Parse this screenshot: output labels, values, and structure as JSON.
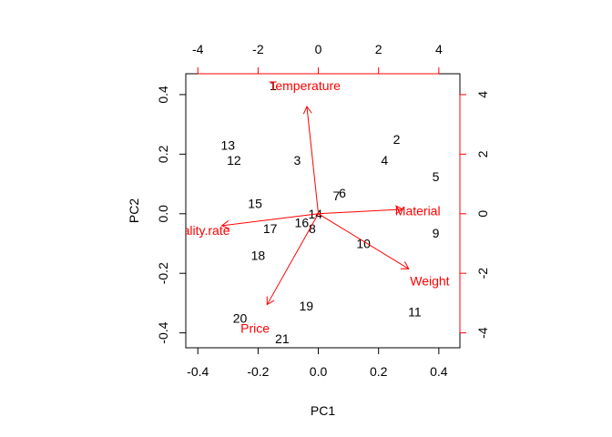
{
  "chart_data": {
    "type": "scatter",
    "subtype": "biplot",
    "xlabel": "PC1",
    "ylabel": "PC2",
    "xlim": [
      -0.44,
      0.47
    ],
    "ylim": [
      -0.45,
      0.47
    ],
    "x_ticks": [
      -0.4,
      -0.2,
      0.0,
      0.2,
      0.4
    ],
    "y_ticks": [
      -0.4,
      -0.2,
      0.0,
      0.2,
      0.4
    ],
    "x_tick_labels": [
      "-0.4",
      "-0.2",
      "0.0",
      "0.2",
      "0.4"
    ],
    "y_tick_labels": [
      "-0.4",
      "-0.2",
      "0.0",
      "0.2",
      "0.4"
    ],
    "top_axis": {
      "lim": [
        -4.4,
        4.7
      ],
      "ticks": [
        -4,
        -2,
        0,
        2,
        4
      ],
      "tick_labels": [
        "-4",
        "-2",
        "0",
        "2",
        "4"
      ],
      "color": "#ff0000"
    },
    "right_axis": {
      "lim": [
        -4.5,
        4.7
      ],
      "ticks": [
        -4,
        -2,
        0,
        2,
        4
      ],
      "tick_labels": [
        "-4",
        "-2",
        "0",
        "2",
        "4"
      ],
      "color": "#ff0000"
    },
    "grid": false,
    "observations": [
      {
        "label": "1",
        "x": -0.15,
        "y": 0.43
      },
      {
        "label": "2",
        "x": 0.26,
        "y": 0.25
      },
      {
        "label": "3",
        "x": -0.07,
        "y": 0.18
      },
      {
        "label": "4",
        "x": 0.22,
        "y": 0.18
      },
      {
        "label": "5",
        "x": 0.39,
        "y": 0.125
      },
      {
        "label": "6",
        "x": 0.08,
        "y": 0.07
      },
      {
        "label": "7",
        "x": 0.06,
        "y": 0.06
      },
      {
        "label": "8",
        "x": -0.02,
        "y": -0.05
      },
      {
        "label": "9",
        "x": 0.39,
        "y": -0.065
      },
      {
        "label": "10",
        "x": 0.15,
        "y": -0.1
      },
      {
        "label": "11",
        "x": 0.32,
        "y": -0.33
      },
      {
        "label": "12",
        "x": -0.28,
        "y": 0.18
      },
      {
        "label": "13",
        "x": -0.3,
        "y": 0.23
      },
      {
        "label": "14",
        "x": -0.01,
        "y": 0.0
      },
      {
        "label": "15",
        "x": -0.21,
        "y": 0.035
      },
      {
        "label": "16",
        "x": -0.055,
        "y": -0.03
      },
      {
        "label": "17",
        "x": -0.16,
        "y": -0.05
      },
      {
        "label": "18",
        "x": -0.2,
        "y": -0.14
      },
      {
        "label": "19",
        "x": -0.04,
        "y": -0.31
      },
      {
        "label": "20",
        "x": -0.26,
        "y": -0.35
      },
      {
        "label": "21",
        "x": -0.12,
        "y": -0.42
      }
    ],
    "variables": [
      {
        "name": "Temperature",
        "x": -0.038,
        "y": 0.36,
        "label_x": -0.045,
        "label_y": 0.43
      },
      {
        "name": "Material",
        "x": 0.28,
        "y": 0.015,
        "label_x": 0.33,
        "label_y": 0.01
      },
      {
        "name": "Weight",
        "x": 0.3,
        "y": -0.185,
        "label_x": 0.37,
        "label_y": -0.225
      },
      {
        "name": "Price",
        "x": -0.17,
        "y": -0.305,
        "label_x": -0.21,
        "label_y": -0.385
      },
      {
        "name": "Quality.rate",
        "x": -0.32,
        "y": -0.04,
        "label_x": -0.4,
        "label_y": -0.055
      }
    ]
  }
}
